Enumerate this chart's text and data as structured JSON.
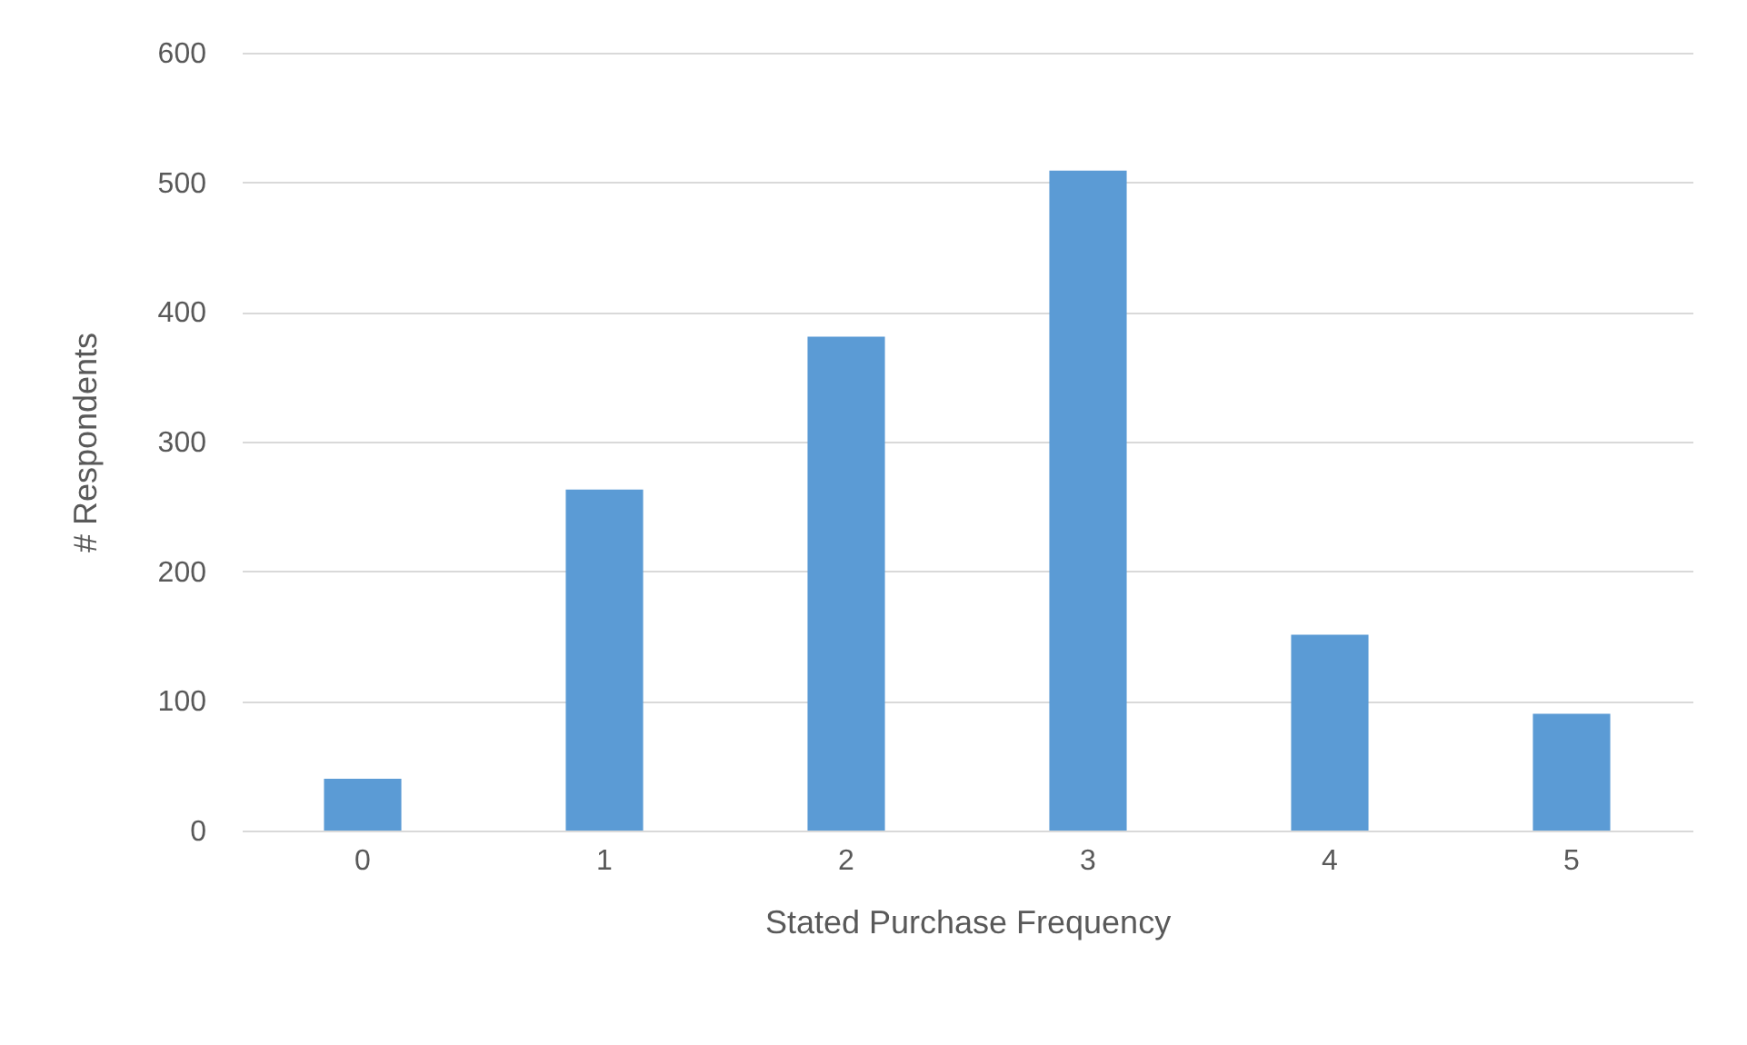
{
  "chart_data": {
    "type": "bar",
    "xlabel": "Stated Purchase Frequency",
    "ylabel": "# Respondents",
    "categories": [
      "0",
      "1",
      "2",
      "3",
      "4",
      "5"
    ],
    "values": [
      40,
      263,
      381,
      509,
      151,
      90
    ],
    "color": "#5b9bd5",
    "ylim": [
      0,
      600
    ],
    "yticks": [
      0,
      100,
      200,
      300,
      400,
      500,
      600
    ],
    "grid": "y"
  }
}
